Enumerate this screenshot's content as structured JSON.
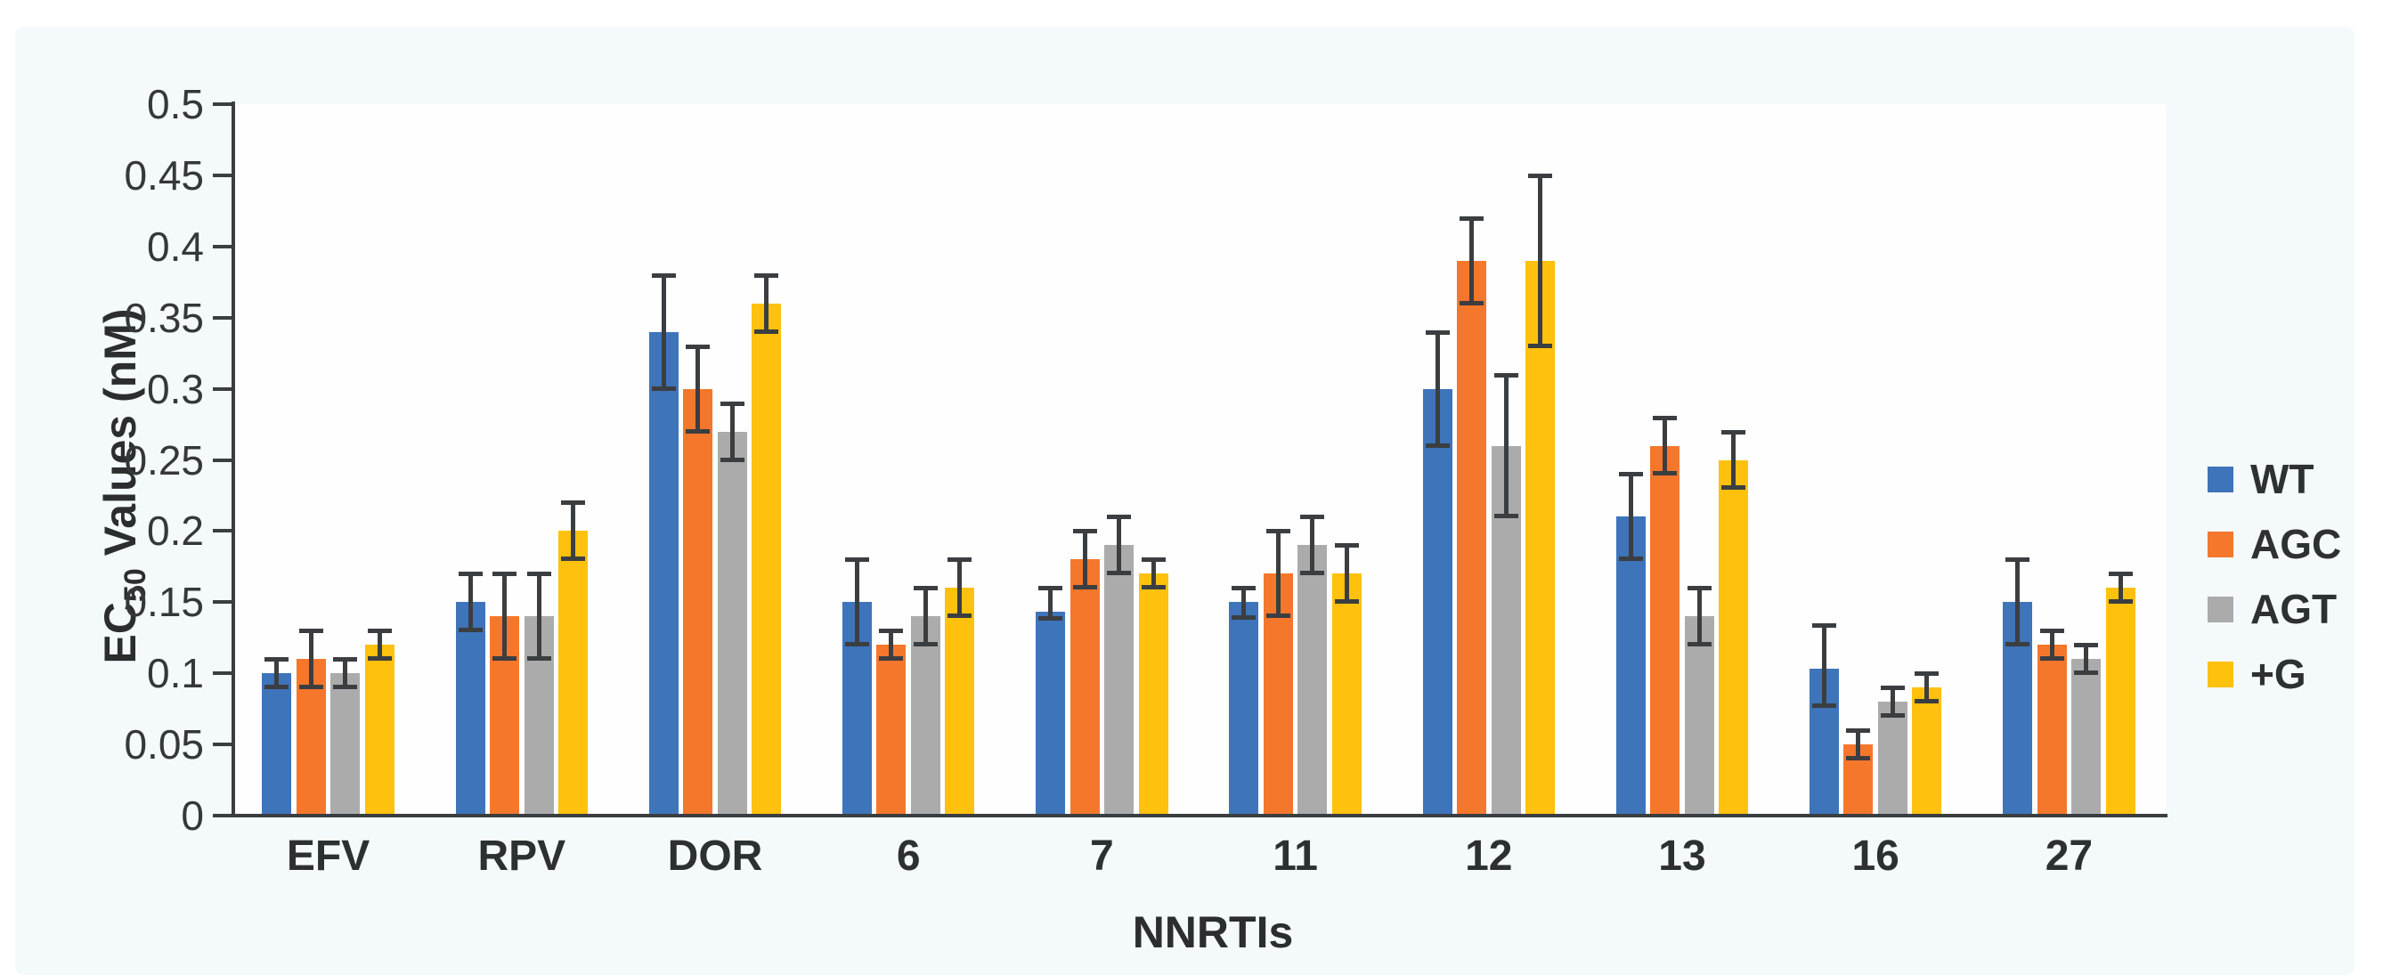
{
  "figure": {
    "y_axis_title_prefix": "EC",
    "y_axis_title_subscript": "50",
    "y_axis_title_suffix": " Values (nM)",
    "x_axis_title": "NNRTIs"
  },
  "colors": {
    "card_background": "#f4f9fc",
    "plot_background": "#fefeff",
    "axis": "#3b3e41",
    "text": "#2d3032",
    "series_wt": "#3e74ba",
    "series_agc": "#f5772c",
    "series_agt": "#ababab",
    "series_plus_g": "#fec10d"
  },
  "chart_data": {
    "type": "bar",
    "title": "",
    "xlabel": "NNRTIs",
    "ylabel": "EC50 Values (nM)",
    "ylim": [
      0,
      0.5
    ],
    "ytick_step": 0.05,
    "ytick_labels": [
      "0",
      "0.05",
      "0.1",
      "0.15",
      "0.2",
      "0.25",
      "0.3",
      "0.35",
      "0.4",
      "0.45",
      "0.5"
    ],
    "grid": false,
    "error_bars": true,
    "legend_position": "right",
    "categories": [
      "EFV",
      "RPV",
      "DOR",
      "6",
      "7",
      "11",
      "12",
      "13",
      "16",
      "27"
    ],
    "series": [
      {
        "name": "WT",
        "color": "#3e74ba",
        "values": [
          0.1,
          0.15,
          0.34,
          0.15,
          0.143,
          0.15,
          0.3,
          0.21,
          0.103,
          0.15
        ],
        "err_lo": [
          0.09,
          0.13,
          0.3,
          0.12,
          0.138,
          0.139,
          0.26,
          0.18,
          0.077,
          0.12
        ],
        "err_hi": [
          0.11,
          0.17,
          0.38,
          0.18,
          0.16,
          0.16,
          0.34,
          0.24,
          0.134,
          0.18
        ]
      },
      {
        "name": "AGC",
        "color": "#f5772c",
        "values": [
          0.11,
          0.14,
          0.3,
          0.12,
          0.18,
          0.17,
          0.39,
          0.26,
          0.05,
          0.12
        ],
        "err_lo": [
          0.09,
          0.11,
          0.27,
          0.11,
          0.16,
          0.14,
          0.36,
          0.24,
          0.04,
          0.11
        ],
        "err_hi": [
          0.13,
          0.17,
          0.33,
          0.13,
          0.2,
          0.2,
          0.42,
          0.28,
          0.06,
          0.13
        ]
      },
      {
        "name": "AGT",
        "color": "#ababab",
        "values": [
          0.1,
          0.14,
          0.27,
          0.14,
          0.19,
          0.19,
          0.26,
          0.14,
          0.08,
          0.11
        ],
        "err_lo": [
          0.09,
          0.11,
          0.25,
          0.12,
          0.17,
          0.17,
          0.21,
          0.12,
          0.07,
          0.1
        ],
        "err_hi": [
          0.11,
          0.17,
          0.29,
          0.16,
          0.21,
          0.21,
          0.31,
          0.16,
          0.09,
          0.12
        ]
      },
      {
        "name": "+G",
        "color": "#fec10d",
        "values": [
          0.12,
          0.2,
          0.36,
          0.16,
          0.17,
          0.17,
          0.39,
          0.25,
          0.09,
          0.16
        ],
        "err_lo": [
          0.11,
          0.18,
          0.34,
          0.14,
          0.16,
          0.15,
          0.33,
          0.23,
          0.08,
          0.15
        ],
        "err_hi": [
          0.13,
          0.22,
          0.38,
          0.18,
          0.18,
          0.19,
          0.45,
          0.27,
          0.1,
          0.17
        ]
      }
    ]
  }
}
